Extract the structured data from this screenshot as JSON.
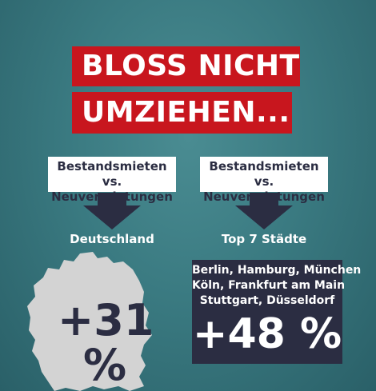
{
  "headline": {
    "line1": "BLOSS NICHT",
    "line2": "UMZIEHEN..."
  },
  "left": {
    "label_line1": "Bestandsmieten vs.",
    "label_line2": "Neuvermietungen",
    "region": "Deutschland",
    "value": "+31",
    "unit": "%"
  },
  "right": {
    "label_line1": "Bestandsmieten vs.",
    "label_line2": "Neuvermietungen",
    "region": "Top 7 Städte",
    "cities": [
      "Berlin, Hamburg, München",
      "Köln, Frankfurt am Main",
      "Stuttgart, Düsseldorf"
    ],
    "value": "+48 %"
  },
  "colors": {
    "background": "#3a7a81",
    "headline_red": "#c8161e",
    "navy": "#2b2d42",
    "map_grey": "#d3d3d3",
    "white": "#ffffff"
  },
  "icons": [
    "arrow-down-icon",
    "germany-map-icon"
  ]
}
